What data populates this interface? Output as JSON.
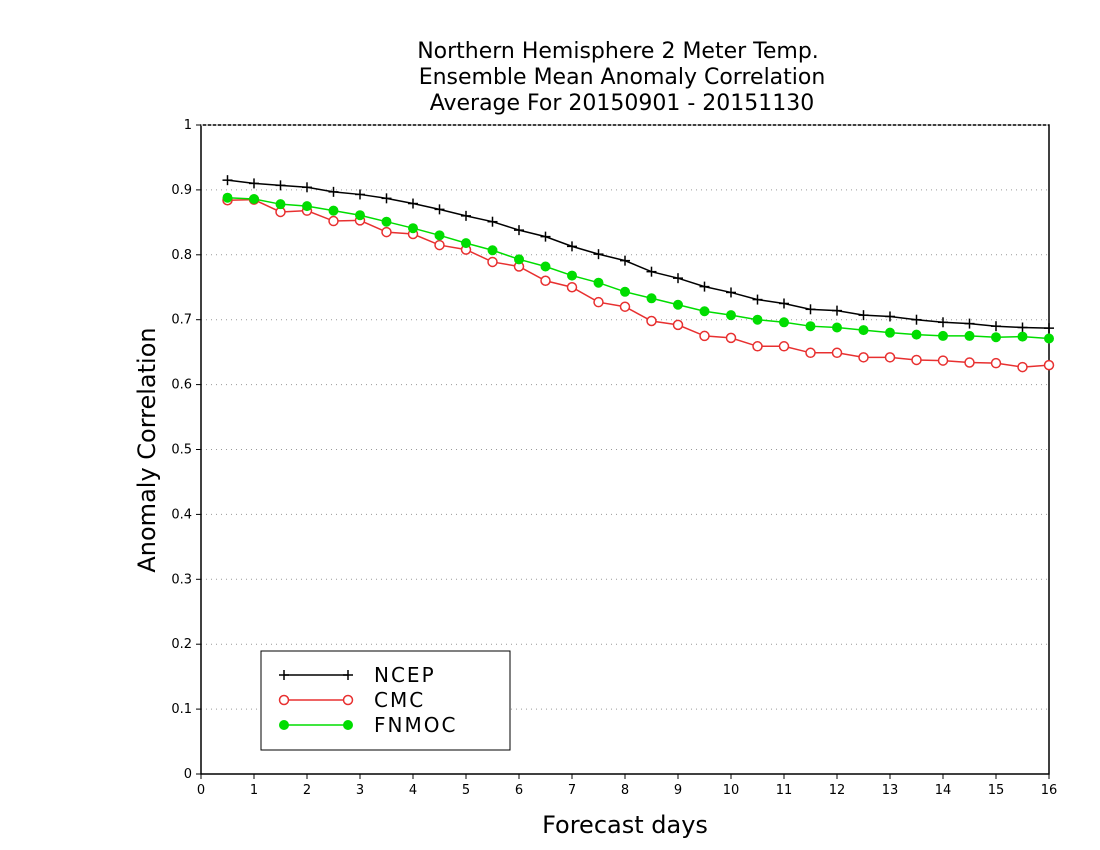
{
  "chart_data": {
    "type": "line",
    "title": [
      "Northern Hemisphere 2 Meter Temp.",
      "Ensemble Mean Anomaly Correlation",
      "Average For 20150901 - 20151130"
    ],
    "xlabel": "Forecast days",
    "ylabel": "Anomaly Correlation",
    "xlim": [
      0,
      16
    ],
    "ylim": [
      0,
      1
    ],
    "xticks": [
      0,
      1,
      2,
      3,
      4,
      5,
      6,
      7,
      8,
      9,
      10,
      11,
      12,
      13,
      14,
      15,
      16
    ],
    "yticks": [
      0,
      0.1,
      0.2,
      0.3,
      0.4,
      0.5,
      0.6,
      0.7,
      0.8,
      0.9,
      1
    ],
    "ytick_labels": [
      "0",
      "0.1",
      "0.2",
      "0.3",
      "0.4",
      "0.5",
      "0.6",
      "0.7",
      "0.8",
      "0.9",
      "1"
    ],
    "grid": "horizontal-dotted",
    "legend_position": "bottom-left",
    "x": [
      0.5,
      1,
      1.5,
      2,
      2.5,
      3,
      3.5,
      4,
      4.5,
      5,
      5.5,
      6,
      6.5,
      7,
      7.5,
      8,
      8.5,
      9,
      9.5,
      10,
      10.5,
      11,
      11.5,
      12,
      12.5,
      13,
      13.5,
      14,
      14.5,
      15,
      15.5,
      16
    ],
    "series": [
      {
        "name": "NCEP",
        "color": "#000000",
        "marker": "plus",
        "values": [
          0.915,
          0.91,
          0.907,
          0.904,
          0.897,
          0.893,
          0.887,
          0.879,
          0.87,
          0.86,
          0.851,
          0.838,
          0.828,
          0.813,
          0.801,
          0.791,
          0.774,
          0.764,
          0.751,
          0.742,
          0.731,
          0.725,
          0.716,
          0.714,
          0.707,
          0.705,
          0.7,
          0.696,
          0.694,
          0.69,
          0.688,
          0.687
        ]
      },
      {
        "name": "CMC",
        "color": "#e83030",
        "marker": "open-circle",
        "values": [
          0.884,
          0.885,
          0.866,
          0.868,
          0.852,
          0.853,
          0.835,
          0.832,
          0.815,
          0.808,
          0.789,
          0.782,
          0.76,
          0.75,
          0.727,
          0.72,
          0.698,
          0.692,
          0.675,
          0.672,
          0.659,
          0.659,
          0.649,
          0.649,
          0.642,
          0.642,
          0.638,
          0.637,
          0.634,
          0.633,
          0.627,
          0.63
        ]
      },
      {
        "name": "FNMOC",
        "color": "#00dd00",
        "marker": "filled-circle",
        "values": [
          0.888,
          0.886,
          0.878,
          0.875,
          0.868,
          0.861,
          0.851,
          0.841,
          0.83,
          0.818,
          0.807,
          0.793,
          0.782,
          0.768,
          0.757,
          0.743,
          0.733,
          0.723,
          0.713,
          0.707,
          0.7,
          0.696,
          0.69,
          0.688,
          0.684,
          0.68,
          0.677,
          0.675,
          0.675,
          0.673,
          0.674,
          0.671
        ]
      }
    ]
  }
}
